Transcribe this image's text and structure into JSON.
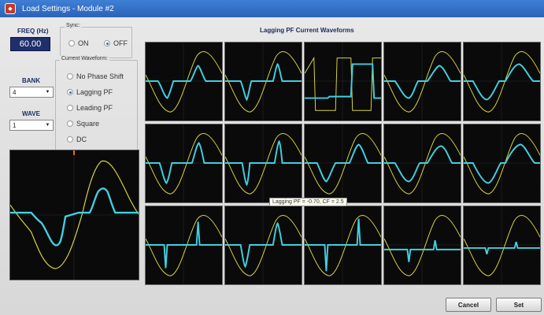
{
  "window": {
    "title": "Load Settings - Module #2",
    "icon": "app-logo-icon"
  },
  "freq": {
    "label": "FREQ (Hz)",
    "value": "60.00"
  },
  "sync": {
    "legend": "Sync:",
    "options": [
      {
        "label": "ON",
        "selected": false
      },
      {
        "label": "OFF",
        "selected": true
      }
    ]
  },
  "bank": {
    "label": "BANK",
    "value": "4"
  },
  "wave": {
    "label": "WAVE",
    "value": "1"
  },
  "current_waveform": {
    "legend": "Current Waveform:",
    "options": [
      {
        "label": "No Phase Shift",
        "selected": false
      },
      {
        "label": "Lagging PF",
        "selected": true
      },
      {
        "label": "Leading PF",
        "selected": false
      },
      {
        "label": "Square",
        "selected": false
      },
      {
        "label": "DC",
        "selected": false
      }
    ]
  },
  "grid": {
    "title": "Lagging PF Current Waveforms"
  },
  "tooltip": {
    "text": "Lagging PF = -0.70, CF = 2.5"
  },
  "buttons": {
    "cancel": "Cancel",
    "set": "Set"
  },
  "colors": {
    "voltage": "#d8d43a",
    "current": "#3fd0e0",
    "screen": "#0a0a0a",
    "titlebar": "#2a63b8"
  }
}
